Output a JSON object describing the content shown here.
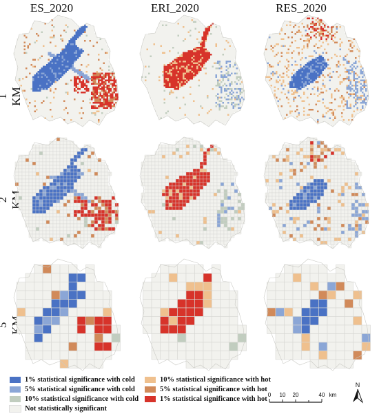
{
  "columns": [
    "ES_2020",
    "ERI_2020",
    "RES_2020"
  ],
  "rows": [
    "1 KM",
    "2 KM",
    "5 KM"
  ],
  "legend": {
    "left": [
      {
        "label": "1% statistical significance with cold",
        "color": "#4a72c4"
      },
      {
        "label": "5%  statistical significance with cold",
        "color": "#8ba6d6"
      },
      {
        "label": "10%  statistical significance with cold",
        "color": "#c1cdbf"
      },
      {
        "label": "Not statistically significant",
        "color": "#f2f2ee"
      }
    ],
    "right": [
      {
        "label": "10%  statistical significance with hot",
        "color": "#efc08e"
      },
      {
        "label": "5% statistical significance with hot",
        "color": "#d18a5a"
      },
      {
        "label": "1%  statistical significance with hot",
        "color": "#d7332a"
      }
    ]
  },
  "scale_bar": {
    "ticks": [
      "0",
      "10",
      "20",
      "40"
    ],
    "unit": "km"
  },
  "north_label": "N",
  "icons": {
    "north_arrow": "north-arrow-icon"
  }
}
